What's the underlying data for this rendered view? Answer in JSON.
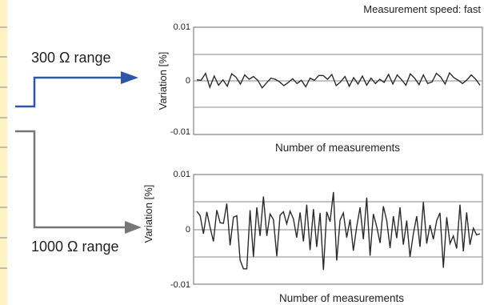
{
  "header": {
    "speed_label": "Measurement speed: fast"
  },
  "range_labels": {
    "top": "300 Ω range",
    "bottom": "1000 Ω range"
  },
  "colors": {
    "arrow_top": "#2d56a6",
    "arrow_bottom": "#777777",
    "line": "#2b2b2b",
    "left_tab": "#fff3c4"
  },
  "chart_data": [
    {
      "type": "line",
      "ylabel": "Variation [%]",
      "xlabel": "Number of measurements",
      "ylim": [
        -0.01,
        0.01
      ],
      "yticks": [
        "0.01",
        "0",
        "-0.01"
      ],
      "grid": true,
      "series": [
        {
          "values": [
            0.0002,
            0.0001,
            0.0014,
            -0.0012,
            0.0009,
            -0.0008,
            0.0002,
            -0.001,
            0.0013,
            0.0007,
            -0.0006,
            0.0011,
            0.0003,
            0.0008,
            0.0001,
            -0.0013,
            -0.0004,
            0.0005,
            0.0003,
            -0.0002,
            -0.0009,
            -0.0003,
            0.0004,
            -0.0005,
            0.0001,
            -0.0011,
            0.0005,
            0.0001,
            0.001,
            0.001,
            0.0003,
            0.0012,
            -0.0009,
            -0.0002,
            0.0008,
            -0.001,
            0.0006,
            -0.0006,
            0.0009,
            -0.0008,
            0.0005,
            -0.0005,
            0.0003,
            -0.0003,
            0.0012,
            -0.0006,
            0.0011,
            0.0002,
            -0.0008,
            0.0013,
            0.0005,
            -0.0007,
            0.0011,
            -0.0005,
            -0.0002,
            0.0014,
            0.0007,
            -0.0006,
            0.0015,
            0.0006,
            0.0001,
            -0.0005,
            0.0002,
            0.0011,
            0.0003,
            -0.0008
          ]
        }
      ]
    },
    {
      "type": "line",
      "ylabel": "Variation [%]",
      "xlabel": "Number of measurements",
      "ylim": [
        -0.01,
        0.01
      ],
      "yticks": [
        "0.01",
        "0",
        "-0.01"
      ],
      "grid": true,
      "series": [
        {
          "values": [
            0.0033,
            0.0025,
            -0.0008,
            0.0032,
            0.0003,
            -0.0022,
            0.0035,
            0.0012,
            0.0011,
            0.0047,
            -0.0029,
            0.0022,
            0.0025,
            -0.0056,
            -0.0072,
            -0.0072,
            0.0035,
            -0.005,
            0.004,
            -0.0012,
            0.006,
            -0.0012,
            0.0028,
            0.0018,
            -0.0049,
            0.0026,
            0.0032,
            0.001,
            0.0033,
            0.0019,
            -0.0015,
            0.0031,
            -0.0022,
            0.0045,
            -0.0038,
            0.0037,
            -0.0032,
            0.003,
            -0.0074,
            0.0032,
            0.0014,
            0.0068,
            -0.0057,
            0.0017,
            0.003,
            -0.0015,
            0.0018,
            -0.0039,
            0.0005,
            0.004,
            -0.0018,
            0.0058,
            -0.0048,
            0.0028,
            0.0005,
            -0.0025,
            0.0042,
            0.0016,
            -0.0034,
            0.0024,
            -0.0016,
            0.004,
            -0.0028,
            0.0016,
            -0.005,
            -0.0008,
            0.0024,
            -0.0032,
            0.005,
            -0.0026,
            0.0008,
            -0.0018,
            0.0016,
            0.003,
            -0.007,
            0.0022,
            -0.0026,
            -0.0012,
            -0.0035,
            0.0045,
            -0.004,
            0.0031,
            -0.0028,
            0.0002,
            -0.001,
            -0.0008
          ]
        }
      ]
    }
  ]
}
